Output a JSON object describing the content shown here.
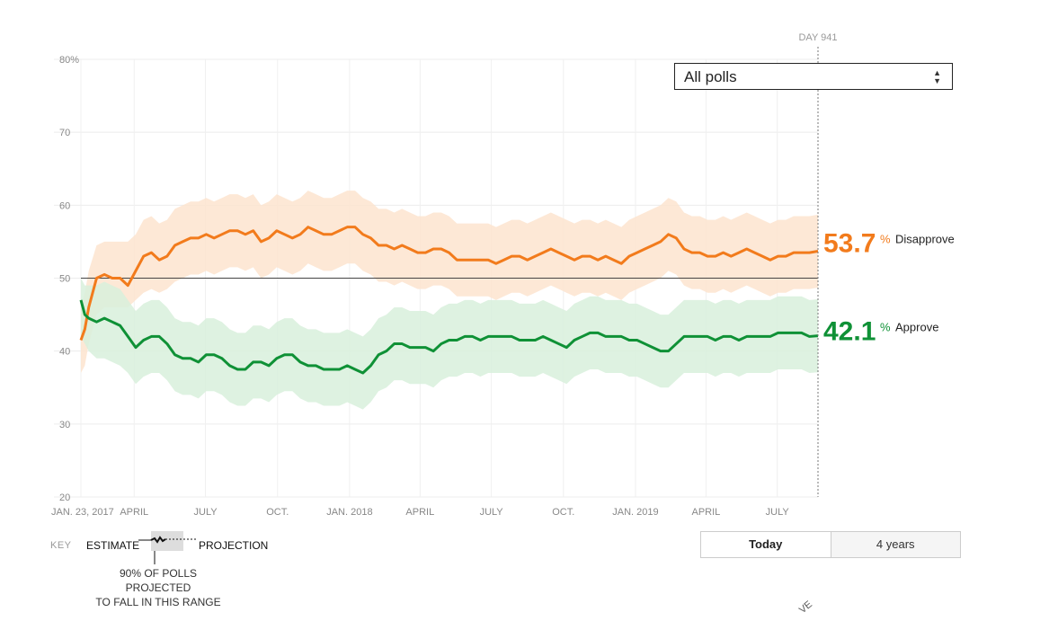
{
  "chart_data": {
    "type": "line",
    "title": "",
    "xlabel": "",
    "ylabel": "",
    "ylim": [
      20,
      80
    ],
    "yticks": [
      20,
      30,
      40,
      50,
      60,
      70,
      80
    ],
    "ytick_labels": [
      "20",
      "30",
      "40",
      "50",
      "60",
      "70",
      "80%"
    ],
    "xlim_days": [
      0,
      941
    ],
    "xticks": [
      {
        "day": 0,
        "label": "JAN. 23, 2017"
      },
      {
        "day": 68,
        "label": "APRIL"
      },
      {
        "day": 159,
        "label": "JULY"
      },
      {
        "day": 251,
        "label": "OCT."
      },
      {
        "day": 343,
        "label": "JAN. 2018"
      },
      {
        "day": 433,
        "label": "APRIL"
      },
      {
        "day": 524,
        "label": "JULY"
      },
      {
        "day": 616,
        "label": "OCT."
      },
      {
        "day": 708,
        "label": "JAN. 2019"
      },
      {
        "day": 798,
        "label": "APRIL"
      },
      {
        "day": 889,
        "label": "JULY"
      }
    ],
    "reference_line": 50,
    "current_day_label": "DAY 941",
    "x_days": [
      0,
      5,
      10,
      20,
      30,
      40,
      50,
      60,
      70,
      80,
      90,
      100,
      110,
      120,
      130,
      140,
      150,
      160,
      170,
      180,
      190,
      200,
      210,
      220,
      230,
      240,
      250,
      260,
      270,
      280,
      290,
      300,
      310,
      320,
      330,
      340,
      350,
      360,
      370,
      380,
      390,
      400,
      410,
      420,
      430,
      440,
      450,
      460,
      470,
      480,
      490,
      500,
      510,
      520,
      530,
      540,
      550,
      560,
      570,
      580,
      590,
      600,
      610,
      620,
      630,
      640,
      650,
      660,
      670,
      680,
      690,
      700,
      710,
      720,
      730,
      740,
      750,
      760,
      770,
      780,
      790,
      800,
      810,
      820,
      830,
      840,
      850,
      860,
      870,
      880,
      890,
      900,
      910,
      920,
      930,
      941
    ],
    "series": [
      {
        "name": "Disapprove",
        "color": "#f27b1c",
        "band_color": "#fde4cf",
        "current_value": "53.7",
        "values": [
          41.5,
          43,
          46,
          50,
          50.5,
          50,
          50,
          49,
          51,
          53,
          53.5,
          52.5,
          53,
          54.5,
          55,
          55.5,
          55.5,
          56,
          55.5,
          56,
          56.5,
          56.5,
          56,
          56.5,
          55,
          55.5,
          56.5,
          56,
          55.5,
          56,
          57,
          56.5,
          56,
          56,
          56.5,
          57,
          57,
          56,
          55.5,
          54.5,
          54.5,
          54,
          54.5,
          54,
          53.5,
          53.5,
          54,
          54,
          53.5,
          52.5,
          52.5,
          52.5,
          52.5,
          52.5,
          52,
          52.5,
          53,
          53,
          52.5,
          53,
          53.5,
          54,
          53.5,
          53,
          52.5,
          53,
          53,
          52.5,
          53,
          52.5,
          52,
          53,
          53.5,
          54,
          54.5,
          55,
          56,
          55.5,
          54,
          53.5,
          53.5,
          53,
          53,
          53.5,
          53,
          53.5,
          54,
          53.5,
          53,
          52.5,
          53,
          53,
          53.5,
          53.5,
          53.5,
          53.7
        ],
        "band_lower": [
          37,
          38,
          41,
          45,
          46,
          46,
          46,
          46,
          47,
          48,
          48.5,
          48,
          48.5,
          49.5,
          50,
          50.5,
          50.5,
          51,
          50.5,
          51,
          51.5,
          51.5,
          51,
          51.5,
          50,
          50.5,
          51.5,
          51,
          50.5,
          51,
          52,
          51.5,
          51,
          51,
          51.5,
          52,
          52,
          51,
          50.5,
          49.5,
          49.5,
          49,
          49.5,
          49,
          48.5,
          48.5,
          49,
          49,
          48.5,
          47.5,
          47.5,
          47.5,
          47.5,
          47.5,
          47,
          47.5,
          48,
          48,
          47.5,
          48,
          48.5,
          49,
          48.5,
          48,
          47.5,
          48,
          48,
          47.5,
          48,
          47.5,
          47,
          48,
          48.5,
          49,
          49.5,
          50,
          51,
          50.5,
          49,
          48.5,
          48.5,
          48,
          48,
          48.5,
          48,
          48.5,
          49,
          48.5,
          48,
          47.5,
          48,
          48,
          48.5,
          48.5,
          48.5,
          48.7
        ],
        "band_upper": [
          46,
          48,
          51,
          54.5,
          55,
          55,
          55,
          55,
          56,
          58,
          58.5,
          57.5,
          58,
          59.5,
          60,
          60.5,
          60.5,
          61,
          60.5,
          61,
          61.5,
          61.5,
          61,
          61.5,
          60,
          60.5,
          61.5,
          61,
          60.5,
          61,
          62,
          61.5,
          61,
          61,
          61.5,
          62,
          62,
          61,
          60.5,
          59.5,
          59.5,
          59,
          59.5,
          59,
          58.5,
          58.5,
          59,
          59,
          58.5,
          57.5,
          57.5,
          57.5,
          57.5,
          57.5,
          57,
          57.5,
          58,
          58,
          57.5,
          58,
          58.5,
          59,
          58.5,
          58,
          57.5,
          58,
          58,
          57.5,
          58,
          57.5,
          57,
          58,
          58.5,
          59,
          59.5,
          60,
          61,
          60.5,
          59,
          58.5,
          58.5,
          58,
          58,
          58.5,
          58,
          58.5,
          59,
          58.5,
          58,
          57.5,
          58,
          58,
          58.5,
          58.5,
          58.5,
          58.7
        ]
      },
      {
        "name": "Approve",
        "color": "#0f9136",
        "band_color": "#d8f0dc",
        "current_value": "42.1",
        "values": [
          47,
          45,
          44.5,
          44,
          44.5,
          44,
          43.5,
          42,
          40.5,
          41.5,
          42,
          42,
          41,
          39.5,
          39,
          39,
          38.5,
          39.5,
          39.5,
          39,
          38,
          37.5,
          37.5,
          38.5,
          38.5,
          38,
          39,
          39.5,
          39.5,
          38.5,
          38,
          38,
          37.5,
          37.5,
          37.5,
          38,
          37.5,
          37,
          38,
          39.5,
          40,
          41,
          41,
          40.5,
          40.5,
          40.5,
          40,
          41,
          41.5,
          41.5,
          42,
          42,
          41.5,
          42,
          42,
          42,
          42,
          41.5,
          41.5,
          41.5,
          42,
          41.5,
          41,
          40.5,
          41.5,
          42,
          42.5,
          42.5,
          42,
          42,
          42,
          41.5,
          41.5,
          41,
          40.5,
          40,
          40,
          41,
          42,
          42,
          42,
          42,
          41.5,
          42,
          42,
          41.5,
          42,
          42,
          42,
          42,
          42.5,
          42.5,
          42.5,
          42.5,
          42,
          42.1
        ],
        "band_lower": [
          42,
          41,
          40,
          39,
          39,
          38.5,
          38,
          37,
          35.5,
          36.5,
          37,
          37,
          36,
          34.5,
          34,
          34,
          33.5,
          34.5,
          34.5,
          34,
          33,
          32.5,
          32.5,
          33.5,
          33.5,
          33,
          34,
          34.5,
          34.5,
          33.5,
          33,
          33,
          32.5,
          32.5,
          32.5,
          33,
          32.5,
          32,
          33,
          34.5,
          35,
          36,
          36,
          35.5,
          35.5,
          35.5,
          35,
          36,
          36.5,
          36.5,
          37,
          37,
          36.5,
          37,
          37,
          37,
          37,
          36.5,
          36.5,
          36.5,
          37,
          36.5,
          36,
          35.5,
          36.5,
          37,
          37.5,
          37.5,
          37,
          37,
          37,
          36.5,
          36.5,
          36,
          35.5,
          35,
          35,
          36,
          37,
          37,
          37,
          37,
          36.5,
          37,
          37,
          36.5,
          37,
          37,
          37,
          37,
          37.5,
          37.5,
          37.5,
          37.5,
          37,
          37.1
        ],
        "band_upper": [
          50,
          49,
          49,
          49,
          49.5,
          49,
          48.5,
          47,
          45.5,
          46.5,
          47,
          47,
          46,
          44.5,
          44,
          44,
          43.5,
          44.5,
          44.5,
          44,
          43,
          42.5,
          42.5,
          43.5,
          43.5,
          43,
          44,
          44.5,
          44.5,
          43.5,
          43,
          43,
          42.5,
          42.5,
          42.5,
          43,
          42.5,
          42,
          43,
          44.5,
          45,
          46,
          46,
          45.5,
          45.5,
          45.5,
          45,
          46,
          46.5,
          46.5,
          47,
          47,
          46.5,
          47,
          47,
          47,
          47,
          46.5,
          46.5,
          46.5,
          47,
          46.5,
          46,
          45.5,
          46.5,
          47,
          47.5,
          47.5,
          47,
          47,
          47,
          46.5,
          46.5,
          46,
          45.5,
          45,
          45,
          46,
          47,
          47,
          47,
          47,
          46.5,
          47,
          47,
          46.5,
          47,
          47,
          47,
          47,
          47.5,
          47.5,
          47.5,
          47.5,
          47,
          47.1
        ]
      }
    ]
  },
  "labels": {
    "pct_symbol": "%",
    "disapprove": "Disapprove",
    "approve": "Approve"
  },
  "controls": {
    "poll_select": "All polls",
    "range_today": "Today",
    "range_4years": "4 years"
  },
  "key": {
    "label": "KEY",
    "estimate": "ESTIMATE",
    "projection": "PROJECTION",
    "range_note_1": "90% OF POLLS PROJECTED",
    "range_note_2": "TO FALL IN THIS RANGE"
  },
  "misc": {
    "cutoff_text": "VE"
  }
}
